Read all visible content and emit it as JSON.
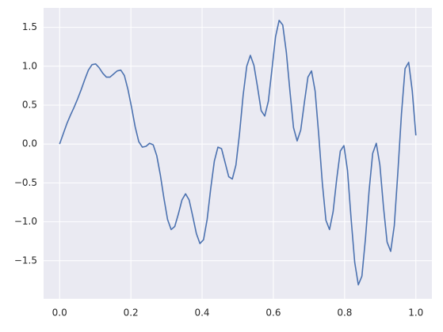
{
  "chart_data": {
    "type": "line",
    "x": [
      0,
      0.0101,
      0.0202,
      0.0303,
      0.0404,
      0.0505,
      0.0606,
      0.0707,
      0.0808,
      0.0909,
      0.101,
      0.1111,
      0.1212,
      0.1313,
      0.1414,
      0.1515,
      0.1616,
      0.1717,
      0.1818,
      0.1919,
      0.202,
      0.2121,
      0.2222,
      0.2323,
      0.2424,
      0.2525,
      0.2626,
      0.2727,
      0.2828,
      0.2929,
      0.303,
      0.3131,
      0.3232,
      0.3333,
      0.3434,
      0.3535,
      0.3636,
      0.3737,
      0.3838,
      0.3939,
      0.404,
      0.4141,
      0.4242,
      0.4343,
      0.4444,
      0.4545,
      0.4646,
      0.4747,
      0.4848,
      0.4949,
      0.5051,
      0.5152,
      0.5253,
      0.5354,
      0.5455,
      0.5556,
      0.5657,
      0.5758,
      0.5859,
      0.596,
      0.6061,
      0.6162,
      0.6263,
      0.6364,
      0.6465,
      0.6566,
      0.6667,
      0.6768,
      0.6869,
      0.697,
      0.7071,
      0.7172,
      0.7273,
      0.7374,
      0.7475,
      0.7576,
      0.7677,
      0.7778,
      0.7879,
      0.798,
      0.8081,
      0.8182,
      0.8283,
      0.8384,
      0.8485,
      0.8586,
      0.8687,
      0.8788,
      0.8889,
      0.899,
      0.9091,
      0.9192,
      0.9293,
      0.9394,
      0.9495,
      0.9596,
      0.9697,
      0.9798,
      0.9899,
      1
    ],
    "series": [
      {
        "color": "#4c72b0",
        "values": [
          0,
          0.13,
          0.26,
          0.37,
          0.47,
          0.58,
          0.7,
          0.83,
          0.95,
          1.02,
          1.03,
          0.98,
          0.91,
          0.86,
          0.86,
          0.9,
          0.94,
          0.95,
          0.88,
          0.7,
          0.47,
          0.22,
          0.03,
          -0.04,
          -0.03,
          0.01,
          -0.01,
          -0.15,
          -0.4,
          -0.7,
          -0.97,
          -1.1,
          -1.06,
          -0.9,
          -0.72,
          -0.64,
          -0.72,
          -0.93,
          -1.15,
          -1.28,
          -1.23,
          -0.97,
          -0.57,
          -0.22,
          -0.04,
          -0.06,
          -0.24,
          -0.42,
          -0.45,
          -0.27,
          0.14,
          0.63,
          1.0,
          1.14,
          1.01,
          0.73,
          0.43,
          0.36,
          0.55,
          0.96,
          1.38,
          1.59,
          1.53,
          1.18,
          0.68,
          0.21,
          0.04,
          0.18,
          0.53,
          0.86,
          0.94,
          0.68,
          0.12,
          -0.5,
          -0.98,
          -1.1,
          -0.87,
          -0.45,
          -0.09,
          -0.02,
          -0.34,
          -0.96,
          -1.52,
          -1.81,
          -1.7,
          -1.21,
          -0.6,
          -0.12,
          0.01,
          -0.27,
          -0.81,
          -1.26,
          -1.38,
          -1.05,
          -0.36,
          0.39,
          0.97,
          1.05,
          0.68,
          0.11
        ]
      }
    ],
    "xlim": [
      -0.045,
      1.045
    ],
    "ylim": [
      -1.99,
      1.75
    ],
    "xticks": [
      {
        "value": 0,
        "label": "0.0"
      },
      {
        "value": 0.2,
        "label": "0.2"
      },
      {
        "value": 0.4,
        "label": "0.4"
      },
      {
        "value": 0.6,
        "label": "0.6"
      },
      {
        "value": 0.8,
        "label": "0.8"
      },
      {
        "value": 1,
        "label": "1.0"
      }
    ],
    "yticks": [
      {
        "value": -1.5,
        "label": "−1.5"
      },
      {
        "value": -1,
        "label": "−1.0"
      },
      {
        "value": -0.5,
        "label": "−0.5"
      },
      {
        "value": 0,
        "label": "0.0"
      },
      {
        "value": 0.5,
        "label": "0.5"
      },
      {
        "value": 1,
        "label": "1.0"
      },
      {
        "value": 1.5,
        "label": "1.5"
      }
    ],
    "grid": true,
    "background": "#eaeaf2"
  }
}
